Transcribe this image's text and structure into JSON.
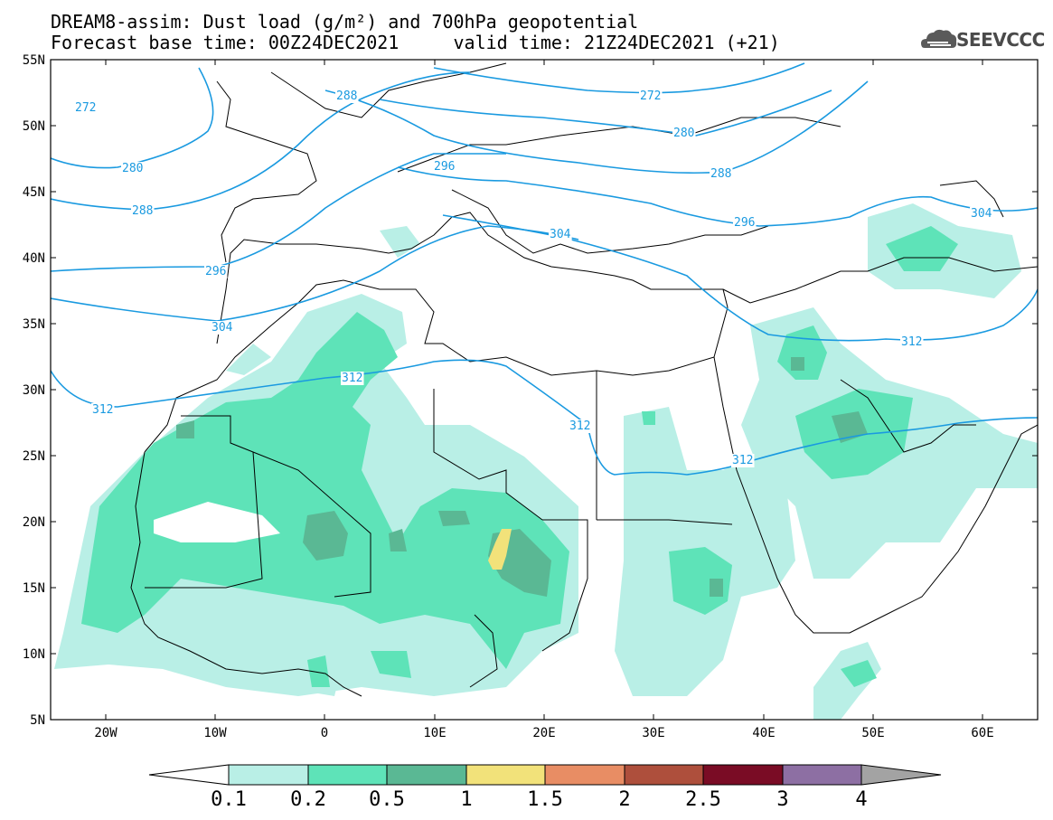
{
  "title": {
    "line1": "DREAM8-assim: Dust load (g/m²) and 700hPa geopotential",
    "line2": "Forecast base time: 00Z24DEC2021     valid time: 21Z24DEC2021 (+21)"
  },
  "logo": {
    "text": "SEEVCCC",
    "icon": "cloud-logo-icon"
  },
  "lat_labels": [
    "55N",
    "50N",
    "45N",
    "40N",
    "35N",
    "30N",
    "25N",
    "20N",
    "15N",
    "10N",
    "5N"
  ],
  "lon_labels": [
    "20W",
    "10W",
    "0",
    "10E",
    "20E",
    "30E",
    "40E",
    "50E",
    "60E"
  ],
  "contour_labels": [
    "272",
    "288",
    "272",
    "280",
    "280",
    "288",
    "296",
    "288",
    "296",
    "296",
    "304",
    "304",
    "304",
    "312",
    "312",
    "312",
    "312",
    "312"
  ],
  "colorbar": {
    "tick_labels": [
      "0.1",
      "0.2",
      "0.5",
      "1",
      "1.5",
      "2",
      "2.5",
      "3",
      "4"
    ],
    "colors": [
      "#b9efe6",
      "#5ee3b8",
      "#5ab894",
      "#f2e27a",
      "#e88d64",
      "#ae4f3c",
      "#7a0c25",
      "#8d6fa3"
    ],
    "under_color": "#ffffff",
    "over_color": "#a3a3a3"
  },
  "colors": {
    "contour": "#1a9ae0",
    "coast": "#000000"
  }
}
